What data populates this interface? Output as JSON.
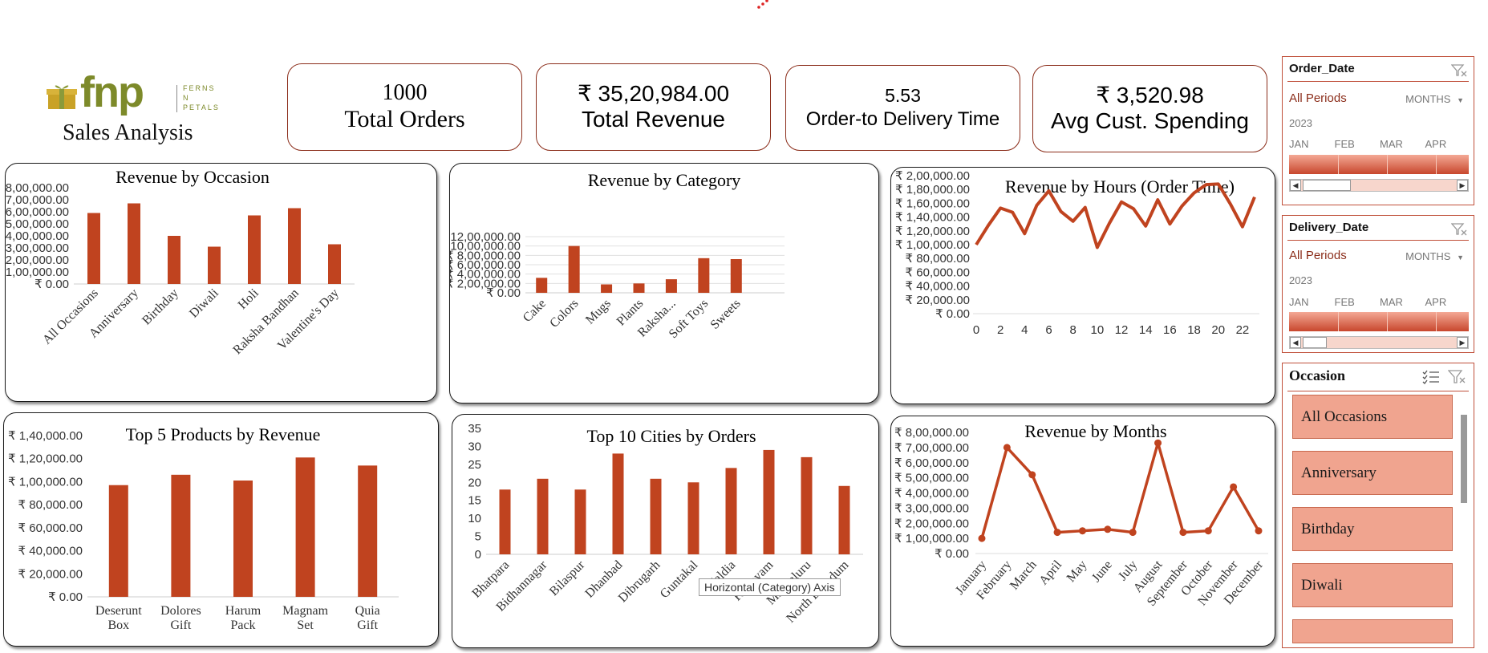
{
  "logo": {
    "brand": "fnp",
    "tagline_1": "FERNS",
    "tagline_2": "N",
    "tagline_3": "PETALS",
    "subtitle": "Sales Analysis"
  },
  "kpis": [
    {
      "value": "1000",
      "label": "Total Orders"
    },
    {
      "value": "₹ 35,20,984.00",
      "label": "Total Revenue"
    },
    {
      "value": "5.53",
      "label": "Order-to Delivery Time"
    },
    {
      "value": "₹ 3,520.98",
      "label": "Avg Cust. Spending"
    }
  ],
  "colors": {
    "accent": "#c0431f",
    "kpi_border": "#8b2d1a",
    "slicer_fill": "#f0a48f",
    "slicer_border": "#c0503a"
  },
  "tooltip": "Horizontal (Category) Axis",
  "slicers": {
    "order_date": {
      "title": "Order_Date",
      "all": "All Periods",
      "unit": "MONTHS",
      "year": "2023",
      "months": [
        "JAN",
        "FEB",
        "MAR",
        "APR"
      ]
    },
    "delivery_date": {
      "title": "Delivery_Date",
      "all": "All Periods",
      "unit": "MONTHS",
      "year": "2023",
      "months": [
        "JAN",
        "FEB",
        "MAR",
        "APR"
      ]
    },
    "occasion": {
      "title": "Occasion",
      "items": [
        "All Occasions",
        "Anniversary",
        "Birthday",
        "Diwali"
      ]
    }
  },
  "chart_data": [
    {
      "id": "occasion",
      "type": "bar",
      "title": "Revenue by Occasion",
      "categories": [
        "All Occasions",
        "Anniversary",
        "Birthday",
        "Diwali",
        "Holi",
        "Raksha Bandhan",
        "Valentine's Day"
      ],
      "values": [
        590000,
        670000,
        400000,
        310000,
        570000,
        630000,
        330000
      ],
      "ylim": [
        0,
        800000
      ],
      "yticks": [
        "₹ 0.00",
        "₹ 1,00,000.00",
        "₹ 2,00,000.00",
        "₹ 3,00,000.00",
        "₹ 4,00,000.00",
        "₹ 5,00,000.00",
        "₹ 6,00,000.00",
        "₹ 7,00,000.00",
        "₹ 8,00,000.00"
      ]
    },
    {
      "id": "category",
      "type": "bar",
      "title": "Revenue by Category",
      "categories": [
        "Cake",
        "Colors",
        "Mugs",
        "Plants",
        "Raksha...",
        "Soft Toys",
        "Sweets"
      ],
      "values": [
        320000,
        1000000,
        180000,
        200000,
        290000,
        740000,
        720000
      ],
      "ylim": [
        0,
        1200000
      ],
      "yticks": [
        "₹ 0.00",
        "₹ 2,00,000.00",
        "₹ 4,00,000.00",
        "₹ 6,00,000.00",
        "₹ 8,00,000.00",
        "₹ 10,00,000.00",
        "₹ 12,00,000.00"
      ]
    },
    {
      "id": "hours",
      "type": "line",
      "title": "Revenue by Hours (Order Time)",
      "x": [
        0,
        1,
        2,
        3,
        4,
        5,
        6,
        7,
        8,
        9,
        10,
        11,
        12,
        13,
        14,
        15,
        16,
        17,
        18,
        19,
        20,
        21,
        22,
        23
      ],
      "values": [
        100000,
        128000,
        153000,
        147000,
        116000,
        157000,
        178000,
        148000,
        134000,
        154000,
        96000,
        131000,
        162000,
        152000,
        127000,
        165000,
        130000,
        156000,
        175000,
        187000,
        188000,
        159000,
        126000,
        169000
      ],
      "ylim": [
        0,
        200000
      ],
      "xticks": [
        "0",
        "2",
        "4",
        "6",
        "8",
        "10",
        "12",
        "14",
        "16",
        "18",
        "20",
        "22"
      ],
      "yticks": [
        "₹ 0.00",
        "₹ 20,000.00",
        "₹ 40,000.00",
        "₹ 60,000.00",
        "₹ 80,000.00",
        "₹ 1,00,000.00",
        "₹ 1,20,000.00",
        "₹ 1,40,000.00",
        "₹ 1,60,000.00",
        "₹ 1,80,000.00",
        "₹ 2,00,000.00"
      ]
    },
    {
      "id": "products",
      "type": "bar",
      "title": "Top 5 Products by Revenue",
      "categories": [
        "Deserunt Box",
        "Dolores Gift",
        "Harum Pack",
        "Magnam Set",
        "Quia Gift"
      ],
      "values": [
        97000,
        106000,
        101000,
        121000,
        114000
      ],
      "ylim": [
        0,
        140000
      ],
      "yticks": [
        "₹ 0.00",
        "₹ 20,000.00",
        "₹ 40,000.00",
        "₹ 60,000.00",
        "₹ 80,000.00",
        "₹ 1,00,000.00",
        "₹ 1,20,000.00",
        "₹ 1,40,000.00"
      ]
    },
    {
      "id": "cities",
      "type": "bar",
      "title": "Top 10 Cities by Orders",
      "categories": [
        "Bhatpara",
        "Bidhannagar",
        "Bilaspur",
        "Dhanbad",
        "Dibrugarh",
        "Guntakal",
        "Haldia",
        "Kottayam",
        "Mangaluru",
        "North Dumdum"
      ],
      "values": [
        18,
        21,
        18,
        28,
        21,
        20,
        24,
        29,
        27,
        19
      ],
      "ylim": [
        0,
        35
      ],
      "yticks": [
        "0",
        "5",
        "10",
        "15",
        "20",
        "25",
        "30",
        "35"
      ]
    },
    {
      "id": "months",
      "type": "line",
      "title": "Revenue by Months",
      "categories": [
        "January",
        "February",
        "March",
        "April",
        "May",
        "June",
        "July",
        "August",
        "September",
        "October",
        "November",
        "December"
      ],
      "values": [
        100000,
        700000,
        520000,
        140000,
        150000,
        160000,
        140000,
        730000,
        140000,
        150000,
        440000,
        150000
      ],
      "ylim": [
        0,
        800000
      ],
      "yticks": [
        "₹ 0.00",
        "₹ 1,00,000.00",
        "₹ 2,00,000.00",
        "₹ 3,00,000.00",
        "₹ 4,00,000.00",
        "₹ 5,00,000.00",
        "₹ 6,00,000.00",
        "₹ 7,00,000.00",
        "₹ 8,00,000.00"
      ]
    }
  ]
}
